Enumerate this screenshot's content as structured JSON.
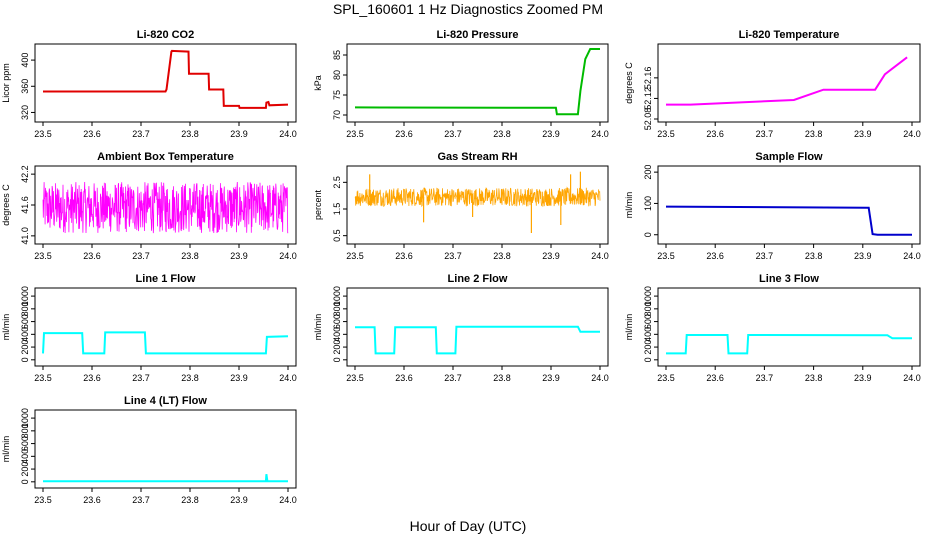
{
  "page": {
    "title": "SPL_160601  1 Hz Diagnostics Zoomed PM",
    "xlabel": "Hour of Day (UTC)"
  },
  "chart_data": [
    {
      "type": "line",
      "title": "Li-820 CO2",
      "ylabel": "Licor ppm",
      "color": "#e00000",
      "xlim": [
        23.5,
        24.0
      ],
      "ylim": [
        310,
        420
      ],
      "xticks": [
        "23.5",
        "23.6",
        "23.7",
        "23.8",
        "23.9",
        "24.0"
      ],
      "yticks": [
        320,
        360,
        400
      ],
      "ytick_labels": [
        "320",
        "360",
        "400"
      ],
      "x": [
        23.5,
        23.75,
        23.752,
        23.762,
        23.763,
        23.797,
        23.798,
        23.838,
        23.839,
        23.868,
        23.869,
        23.9,
        23.901,
        23.955,
        23.956,
        23.96,
        23.962,
        24.0
      ],
      "y": [
        352,
        352,
        355,
        413,
        414,
        413,
        379,
        379,
        355,
        355,
        330,
        330,
        327,
        327,
        335,
        336,
        331,
        332
      ]
    },
    {
      "type": "line",
      "title": "Li-820 Pressure",
      "ylabel": "kPa",
      "color": "#00bb00",
      "xlim": [
        23.5,
        24.0
      ],
      "ylim": [
        69,
        87
      ],
      "xticks": [
        "23.5",
        "23.6",
        "23.7",
        "23.8",
        "23.9",
        "24.0"
      ],
      "yticks": [
        70,
        75,
        80,
        85
      ],
      "ytick_labels": [
        "70",
        "75",
        "80",
        "85"
      ],
      "x": [
        23.5,
        23.91,
        23.912,
        23.955,
        23.96,
        23.97,
        23.98,
        24.0
      ],
      "y": [
        71.9,
        71.8,
        70.2,
        70.2,
        76,
        84,
        86.5,
        86.5
      ]
    },
    {
      "type": "line",
      "title": "Li-820 Temperature",
      "ylabel": "degrees C",
      "color": "#ff00ff",
      "xlim": [
        23.5,
        24.0
      ],
      "ylim": [
        52.08,
        52.22
      ],
      "xticks": [
        "23.5",
        "23.6",
        "23.7",
        "23.8",
        "23.9",
        "24.0"
      ],
      "yticks": [
        52.08,
        52.12,
        52.16
      ],
      "ytick_labels": [
        "52.08",
        "52.12",
        "52.16"
      ],
      "x": [
        23.5,
        23.55,
        23.76,
        23.82,
        23.925,
        23.945,
        23.99
      ],
      "y": [
        52.108,
        52.108,
        52.117,
        52.137,
        52.137,
        52.167,
        52.2
      ]
    },
    {
      "type": "line",
      "title": "Ambient Box Temperature",
      "ylabel": "degrees C",
      "color": "#ff00ff",
      "xlim": [
        23.5,
        24.0
      ],
      "ylim": [
        40.9,
        42.3
      ],
      "xticks": [
        "23.5",
        "23.6",
        "23.7",
        "23.8",
        "23.9",
        "24.0"
      ],
      "yticks": [
        41.0,
        41.6,
        42.2
      ],
      "ytick_labels": [
        "41.0",
        "41.6",
        "42.2"
      ],
      "noise_band": [
        41.05,
        42.05
      ],
      "center": 41.55
    },
    {
      "type": "line",
      "title": "Gas Stream RH",
      "ylabel": "percent",
      "color": "#ffa500",
      "xlim": [
        23.5,
        24.0
      ],
      "ylim": [
        0.3,
        3.0
      ],
      "xticks": [
        "23.5",
        "23.6",
        "23.7",
        "23.8",
        "23.9",
        "24.0"
      ],
      "yticks": [
        0.5,
        1.5,
        2.5
      ],
      "ytick_labels": [
        "0.5",
        "1.5",
        "2.5"
      ],
      "noise_band": [
        1.6,
        2.3
      ],
      "center": 1.95,
      "spikes_x": [
        23.53,
        23.64,
        23.74,
        23.86,
        23.92,
        23.94,
        23.96
      ],
      "spikes_y": [
        2.8,
        1.0,
        1.2,
        0.6,
        0.9,
        2.8,
        2.9
      ]
    },
    {
      "type": "line",
      "title": "Sample Flow",
      "ylabel": "ml/min",
      "color": "#0000cc",
      "xlim": [
        23.5,
        24.0
      ],
      "ylim": [
        -20,
        210
      ],
      "xticks": [
        "23.5",
        "23.6",
        "23.7",
        "23.8",
        "23.9",
        "24.0"
      ],
      "yticks": [
        0,
        100,
        200
      ],
      "ytick_labels": [
        "0",
        "100",
        "200"
      ],
      "x": [
        23.5,
        23.91,
        23.912,
        23.92,
        23.93,
        24.0
      ],
      "y": [
        90,
        86,
        86,
        2,
        0,
        0
      ]
    },
    {
      "type": "line",
      "title": "Line 1 Flow",
      "ylabel": "ml/min",
      "color": "#00ffff",
      "xlim": [
        23.5,
        24.0
      ],
      "ylim": [
        -50,
        1080
      ],
      "xticks": [
        "23.5",
        "23.6",
        "23.7",
        "23.8",
        "23.9",
        "24.0"
      ],
      "yticks": [
        0,
        200,
        400,
        600,
        800,
        1000
      ],
      "ytick_labels": [
        "0",
        "200",
        "400",
        "600",
        "800",
        "1000"
      ],
      "x": [
        23.5,
        23.502,
        23.58,
        23.582,
        23.625,
        23.627,
        23.708,
        23.71,
        23.955,
        23.957,
        24.0
      ],
      "y": [
        100,
        420,
        420,
        100,
        100,
        430,
        430,
        100,
        100,
        360,
        370
      ]
    },
    {
      "type": "line",
      "title": "Line 2 Flow",
      "ylabel": "ml/min",
      "color": "#00ffff",
      "xlim": [
        23.5,
        24.0
      ],
      "ylim": [
        -50,
        1080
      ],
      "xticks": [
        "23.5",
        "23.6",
        "23.7",
        "23.8",
        "23.9",
        "24.0"
      ],
      "yticks": [
        0,
        200,
        400,
        600,
        800,
        1000
      ],
      "ytick_labels": [
        "0",
        "200",
        "400",
        "600",
        "800",
        "1000"
      ],
      "x": [
        23.5,
        23.54,
        23.542,
        23.58,
        23.582,
        23.665,
        23.667,
        23.705,
        23.707,
        23.955,
        23.96,
        24.0
      ],
      "y": [
        510,
        510,
        100,
        100,
        510,
        510,
        100,
        100,
        520,
        520,
        440,
        440
      ]
    },
    {
      "type": "line",
      "title": "Line 3 Flow",
      "ylabel": "ml/min",
      "color": "#00ffff",
      "xlim": [
        23.5,
        24.0
      ],
      "ylim": [
        -50,
        1080
      ],
      "xticks": [
        "23.5",
        "23.6",
        "23.7",
        "23.8",
        "23.9",
        "24.0"
      ],
      "yticks": [
        0,
        200,
        400,
        600,
        800,
        1000
      ],
      "ytick_labels": [
        "0",
        "200",
        "400",
        "600",
        "800",
        "1000"
      ],
      "x": [
        23.5,
        23.502,
        23.54,
        23.542,
        23.625,
        23.627,
        23.665,
        23.667,
        23.95,
        23.96,
        24.0
      ],
      "y": [
        100,
        100,
        100,
        390,
        390,
        100,
        100,
        390,
        385,
        340,
        340
      ]
    },
    {
      "type": "line",
      "title": "Line 4 (LT) Flow",
      "ylabel": "ml/min",
      "color": "#00ffff",
      "xlim": [
        23.5,
        24.0
      ],
      "ylim": [
        -50,
        1080
      ],
      "xticks": [
        "23.5",
        "23.6",
        "23.7",
        "23.8",
        "23.9",
        "24.0"
      ],
      "yticks": [
        0,
        200,
        400,
        600,
        800,
        1000
      ],
      "ytick_labels": [
        "0",
        "200",
        "400",
        "600",
        "800",
        "1000"
      ],
      "x": [
        23.5,
        23.955,
        23.956,
        23.958,
        23.96,
        24.0
      ],
      "y": [
        10,
        10,
        120,
        10,
        10,
        10
      ]
    }
  ]
}
